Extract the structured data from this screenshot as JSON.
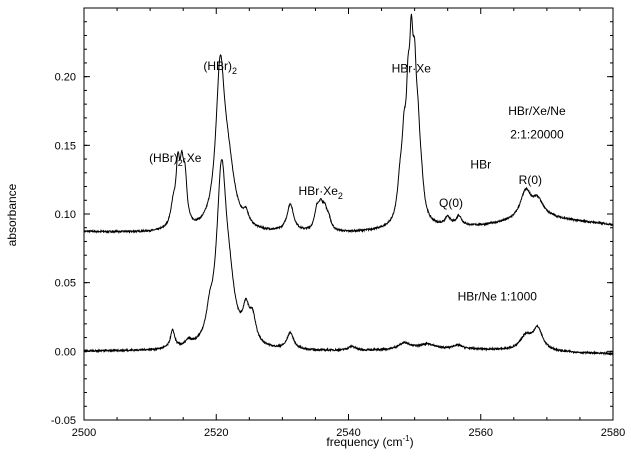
{
  "chart_data": {
    "type": "line",
    "title": "",
    "xlabel": "frequency (cm",
    "xlabel_sup": "-1",
    "xlabel_end": ")",
    "ylabel": "absorbance",
    "xlim": [
      2500,
      2580
    ],
    "ylim": [
      -0.05,
      0.25
    ],
    "xticks": [
      2500,
      2520,
      2540,
      2560,
      2580
    ],
    "yticks": [
      -0.05,
      0.0,
      0.05,
      0.1,
      0.15,
      0.2
    ],
    "ytick_labels": [
      "-0.05",
      "0.00",
      "0.05",
      "0.10",
      "0.15",
      "0.20"
    ],
    "series": [
      {
        "baseline": [
          [
            2500,
            0.087
          ],
          [
            2520,
            0.085
          ],
          [
            2540,
            0.086
          ],
          [
            2560,
            0.091
          ],
          [
            2570,
            0.097
          ],
          [
            2580,
            0.092
          ]
        ],
        "peaks": [
          {
            "x": 2514.2,
            "h": 0.04,
            "w": 0.35
          },
          {
            "x": 2514.8,
            "h": 0.035,
            "w": 0.35
          },
          {
            "x": 2515.3,
            "h": 0.03,
            "w": 0.35
          },
          {
            "x": 2513.5,
            "h": 0.015,
            "w": 0.5
          },
          {
            "x": 2520.6,
            "h": 0.11,
            "w": 0.8
          },
          {
            "x": 2521.8,
            "h": 0.04,
            "w": 1.2
          },
          {
            "x": 2524.5,
            "h": 0.008,
            "w": 0.5
          },
          {
            "x": 2531.2,
            "h": 0.02,
            "w": 0.6
          },
          {
            "x": 2535.2,
            "h": 0.014,
            "w": 0.4
          },
          {
            "x": 2535.8,
            "h": 0.015,
            "w": 0.4
          },
          {
            "x": 2536.4,
            "h": 0.013,
            "w": 0.4
          },
          {
            "x": 2537.0,
            "h": 0.008,
            "w": 0.4
          },
          {
            "x": 2547.8,
            "h": 0.025,
            "w": 0.5
          },
          {
            "x": 2548.4,
            "h": 0.045,
            "w": 0.4
          },
          {
            "x": 2549.0,
            "h": 0.065,
            "w": 0.35
          },
          {
            "x": 2549.5,
            "h": 0.095,
            "w": 0.35
          },
          {
            "x": 2550.0,
            "h": 0.075,
            "w": 0.35
          },
          {
            "x": 2550.5,
            "h": 0.045,
            "w": 0.4
          },
          {
            "x": 2551.0,
            "h": 0.02,
            "w": 0.5
          },
          {
            "x": 2555.0,
            "h": 0.006,
            "w": 0.5
          },
          {
            "x": 2556.7,
            "h": 0.007,
            "w": 0.5
          },
          {
            "x": 2566.8,
            "h": 0.02,
            "w": 1.0
          },
          {
            "x": 2568.6,
            "h": 0.012,
            "w": 1.0
          }
        ]
      },
      {
        "baseline": [
          [
            2500,
            0.0
          ],
          [
            2540,
            0.0
          ],
          [
            2560,
            0.001
          ],
          [
            2580,
            -0.002
          ]
        ],
        "peaks": [
          {
            "x": 2513.4,
            "h": 0.013,
            "w": 0.4
          },
          {
            "x": 2515.8,
            "h": 0.004,
            "w": 0.5
          },
          {
            "x": 2519.0,
            "h": 0.015,
            "w": 0.6
          },
          {
            "x": 2520.8,
            "h": 0.125,
            "w": 0.9
          },
          {
            "x": 2522.0,
            "h": 0.03,
            "w": 1.0
          },
          {
            "x": 2524.5,
            "h": 0.022,
            "w": 0.6
          },
          {
            "x": 2525.5,
            "h": 0.018,
            "w": 0.6
          },
          {
            "x": 2531.2,
            "h": 0.012,
            "w": 0.6
          },
          {
            "x": 2540.5,
            "h": 0.003,
            "w": 0.7
          },
          {
            "x": 2548.5,
            "h": 0.005,
            "w": 1.2
          },
          {
            "x": 2552.0,
            "h": 0.004,
            "w": 1.5
          },
          {
            "x": 2556.5,
            "h": 0.003,
            "w": 1.0
          },
          {
            "x": 2566.8,
            "h": 0.01,
            "w": 1.0
          },
          {
            "x": 2568.6,
            "h": 0.016,
            "w": 0.9
          }
        ]
      }
    ],
    "annotations": [
      {
        "text": "(HBr)",
        "sub": "2",
        "after": "·Xe",
        "x": 2513.8,
        "y": 0.138
      },
      {
        "text": "(HBr)",
        "sub": "2",
        "after": "",
        "x": 2520.6,
        "y": 0.205
      },
      {
        "text": "HBr·Xe",
        "sub": "2",
        "after": "",
        "x": 2535.8,
        "y": 0.114
      },
      {
        "text": "HBr·Xe",
        "sub": "",
        "after": "",
        "x": 2549.5,
        "y": 0.203
      },
      {
        "text": "HBr/Xe/Ne",
        "sub": "",
        "after": "",
        "x": 2568.5,
        "y": 0.172
      },
      {
        "text": "2:1:20000",
        "sub": "",
        "after": "",
        "x": 2568.5,
        "y": 0.155
      },
      {
        "text": "HBr",
        "sub": "",
        "after": "",
        "x": 2560.0,
        "y": 0.133
      },
      {
        "text": "Q(0)",
        "sub": "",
        "after": "",
        "x": 2555.5,
        "y": 0.105
      },
      {
        "text": "R(0)",
        "sub": "",
        "after": "",
        "x": 2567.5,
        "y": 0.122
      },
      {
        "text": "HBr/Ne  1:1000",
        "sub": "",
        "after": "",
        "x": 2562.5,
        "y": 0.037
      }
    ]
  }
}
